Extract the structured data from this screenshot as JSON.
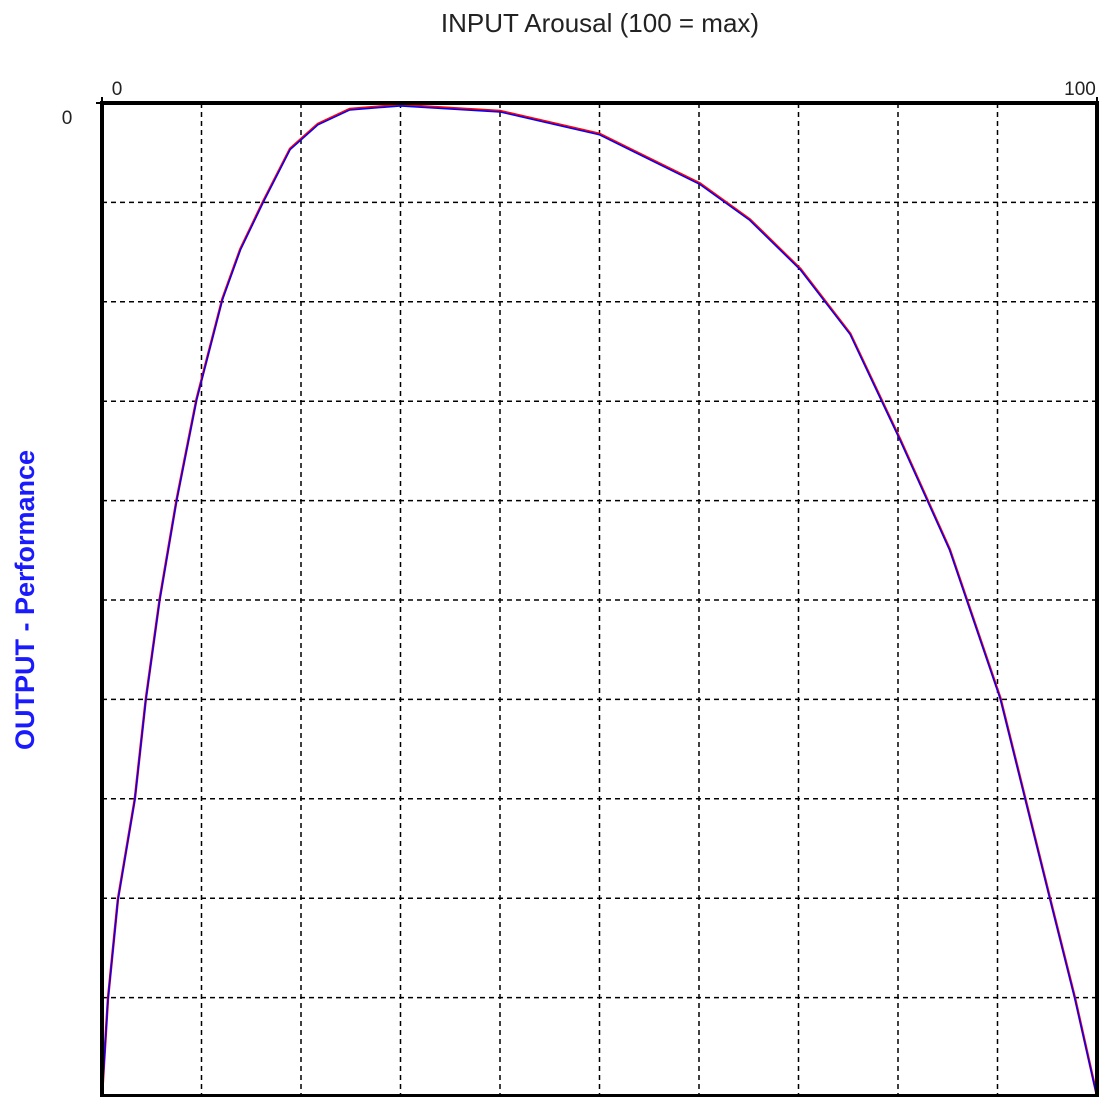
{
  "chart_data": {
    "type": "line",
    "title": "INPUT Arousal (100 = max)",
    "y_label": "OUTPUT - Performance",
    "x": [
      0,
      0.6,
      1.6,
      3.3,
      4.4,
      5.8,
      7.5,
      9.5,
      12.1,
      13.9,
      16.2,
      18.9,
      21.7,
      24.9,
      30,
      40,
      50,
      60.1,
      65.1,
      70.2,
      75.2,
      80.2,
      85.2,
      90.3,
      95.3,
      97.8,
      100
    ],
    "values": [
      -100,
      -90.2,
      -80.2,
      -70.1,
      -60.1,
      -50,
      -40,
      -29.9,
      -19.8,
      -14.8,
      -10,
      -4.7,
      -2.2,
      -0.7,
      -0.3,
      -0.9,
      -3.2,
      -8.2,
      -11.8,
      -16.8,
      -23.3,
      -33.9,
      -45,
      -60,
      -80.2,
      -90.2,
      -100
    ],
    "color": "#0000ff",
    "shadow_color": "#ff0000",
    "xlim": [
      0,
      100
    ],
    "ylim": [
      -100,
      0
    ],
    "xticks": [
      0,
      100
    ],
    "yticks": [
      0
    ],
    "x_gridlines": [
      10,
      20,
      30,
      40,
      50,
      60,
      70,
      80,
      90
    ],
    "y_gridlines": [
      -10,
      -20,
      -30,
      -40,
      -50,
      -60,
      -70,
      -80,
      -90
    ],
    "grid": true
  }
}
